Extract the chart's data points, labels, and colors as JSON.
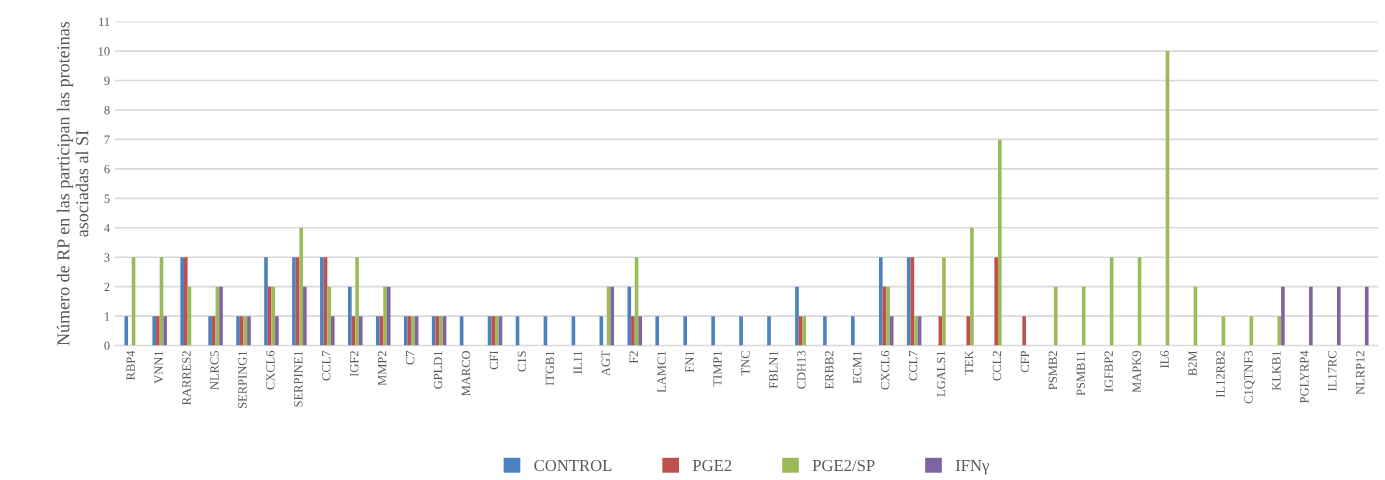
{
  "chart_data": {
    "type": "bar",
    "ylabel": "Número de RP en las participan las proteinas\nasociadas al SI",
    "categories": [
      "RBP4",
      "VNN1",
      "RARRES2",
      "NLRC5",
      "SERPING1",
      "CXCL6",
      "SERPINE1",
      "CCL7",
      "IGF2",
      "MMP2",
      "C7",
      "GPLD1",
      "MARCO",
      "CFI",
      "C1S",
      "ITGB1",
      "IL11",
      "AGT",
      "F2",
      "LAMC1",
      "FN1",
      "TIMP1",
      "TNC",
      "FBLN1",
      "CDH13",
      "ERBB2",
      "ECM1",
      "CXCL6",
      "CCL7",
      "LGALS1",
      "TEK",
      "CCL2",
      "CFP",
      "PSMB2",
      "PSMB11",
      "IGFBP2",
      "MAPK9",
      "IL6",
      "B2M",
      "IL12RB2",
      "C1QTNF3",
      "KLKB1",
      "PGLYRP4",
      "IL17RC",
      "NLRP12"
    ],
    "series": [
      {
        "name": "CONTROL",
        "color": "#4f81bd",
        "values": [
          1,
          1,
          3,
          1,
          1,
          3,
          3,
          3,
          2,
          1,
          1,
          1,
          1,
          1,
          1,
          1,
          1,
          1,
          2,
          1,
          1,
          1,
          1,
          1,
          2,
          1,
          1,
          3,
          3,
          null,
          null,
          null,
          null,
          null,
          null,
          null,
          null,
          null,
          null,
          null,
          null,
          null,
          null,
          null,
          null
        ]
      },
      {
        "name": "PGE2",
        "color": "#c0504d",
        "values": [
          null,
          1,
          3,
          1,
          1,
          2,
          3,
          3,
          1,
          1,
          1,
          1,
          null,
          1,
          null,
          null,
          null,
          null,
          1,
          null,
          null,
          null,
          null,
          null,
          1,
          null,
          null,
          2,
          3,
          1,
          1,
          3,
          1,
          null,
          null,
          null,
          null,
          null,
          null,
          null,
          null,
          null,
          null,
          null,
          null
        ]
      },
      {
        "name": "PGE2/SP",
        "color": "#9bbb59",
        "values": [
          3,
          3,
          2,
          2,
          1,
          2,
          4,
          2,
          3,
          2,
          1,
          1,
          null,
          1,
          null,
          null,
          null,
          2,
          3,
          null,
          null,
          null,
          null,
          null,
          1,
          null,
          null,
          2,
          1,
          3,
          4,
          7,
          null,
          2,
          2,
          3,
          3,
          10,
          2,
          1,
          1,
          1,
          null,
          null,
          null
        ]
      },
      {
        "name": "IFNγ",
        "color": "#8064a2",
        "values": [
          null,
          1,
          null,
          2,
          1,
          1,
          2,
          1,
          1,
          2,
          1,
          1,
          null,
          1,
          null,
          null,
          null,
          2,
          1,
          null,
          null,
          null,
          null,
          null,
          null,
          null,
          null,
          1,
          1,
          null,
          null,
          null,
          null,
          null,
          null,
          null,
          null,
          null,
          null,
          null,
          null,
          2,
          2,
          2,
          2
        ]
      }
    ],
    "ylim": [
      0,
      11
    ],
    "yticks": [
      0,
      1,
      2,
      3,
      4,
      5,
      6,
      7,
      8,
      9,
      10,
      11
    ],
    "grid": "y",
    "legend": "bottom"
  }
}
